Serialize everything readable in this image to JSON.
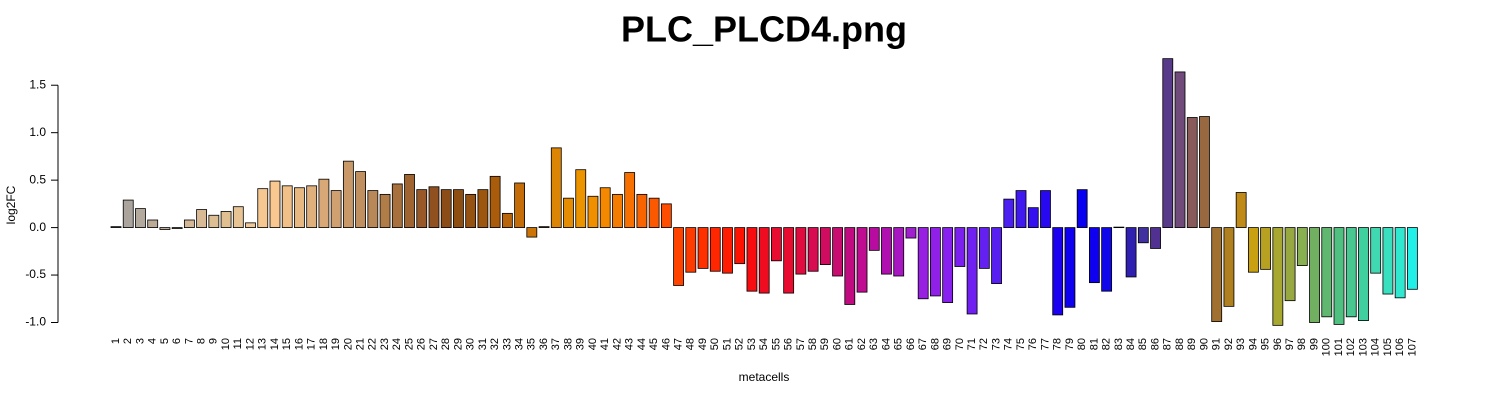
{
  "chart_data": {
    "type": "bar",
    "title": "PLC_PLCD4.png",
    "x_label": "metacells",
    "y_label": "log2FC",
    "categories": [
      "1",
      "2",
      "3",
      "4",
      "5",
      "6",
      "7",
      "8",
      "9",
      "10",
      "11",
      "12",
      "13",
      "14",
      "15",
      "16",
      "17",
      "18",
      "19",
      "20",
      "21",
      "22",
      "23",
      "24",
      "25",
      "26",
      "27",
      "28",
      "29",
      "30",
      "31",
      "32",
      "33",
      "34",
      "35",
      "36",
      "37",
      "38",
      "39",
      "40",
      "41",
      "42",
      "43",
      "44",
      "45",
      "46",
      "47",
      "48",
      "49",
      "50",
      "51",
      "52",
      "53",
      "54",
      "55",
      "56",
      "57",
      "58",
      "59",
      "60",
      "61",
      "62",
      "63",
      "64",
      "65",
      "66",
      "67",
      "68",
      "69",
      "70",
      "71",
      "72",
      "73",
      "74",
      "75",
      "76",
      "77",
      "78",
      "79",
      "80",
      "81",
      "82",
      "83",
      "84",
      "85",
      "86",
      "87",
      "88",
      "89",
      "90",
      "91",
      "92",
      "93",
      "94",
      "95",
      "96",
      "97",
      "98",
      "99",
      "100",
      "101",
      "102",
      "103",
      "104",
      "105",
      "106",
      "107"
    ],
    "values": [
      0.01,
      0.29,
      0.2,
      0.08,
      -0.02,
      -0.01,
      0.08,
      0.19,
      0.13,
      0.17,
      0.22,
      0.05,
      0.41,
      0.49,
      0.44,
      0.42,
      0.44,
      0.51,
      0.39,
      0.7,
      0.59,
      0.39,
      0.35,
      0.46,
      0.56,
      0.4,
      0.43,
      0.4,
      0.4,
      0.35,
      0.4,
      0.54,
      0.15,
      0.47,
      -0.1,
      0.01,
      0.84,
      0.31,
      0.61,
      0.33,
      0.42,
      0.35,
      0.58,
      0.35,
      0.31,
      0.25,
      -0.61,
      -0.47,
      -0.43,
      -0.46,
      -0.48,
      -0.38,
      -0.67,
      -0.69,
      -0.35,
      -0.69,
      -0.49,
      -0.46,
      -0.39,
      -0.51,
      -0.81,
      -0.68,
      -0.24,
      -0.49,
      -0.51,
      -0.11,
      -0.75,
      -0.72,
      -0.79,
      -0.41,
      -0.91,
      -0.43,
      -0.59,
      0.3,
      0.39,
      0.21,
      0.39,
      -0.92,
      -0.84,
      0.4,
      -0.58,
      -0.67,
      0.005,
      -0.52,
      -0.16,
      -0.22,
      1.78,
      1.64,
      1.16,
      1.17,
      -0.99,
      -0.83,
      0.37,
      -0.47,
      -0.44,
      -1.03,
      -0.77,
      -0.4,
      -1.0,
      -0.94,
      -1.02,
      -0.94,
      -0.98,
      -0.48,
      -0.7,
      -0.74,
      -0.65
    ],
    "colors": [
      "#a9a9a9",
      "#aaa49c",
      "#b3aa9d",
      "#bbaa96",
      "#c4b09a",
      "#cdb59c",
      "#d4b896",
      "#d8bb94",
      "#dcbe92",
      "#e0c090",
      "#e8c494",
      "#f0c898",
      "#f5c892",
      "#f8c890",
      "#f0c088",
      "#e8b882",
      "#e0b07c",
      "#d8a876",
      "#d0a070",
      "#c89868",
      "#c09060",
      "#b88858",
      "#b07c48",
      "#a8703c",
      "#a06430",
      "#985828",
      "#905020",
      "#8c4c18",
      "#8e4e12",
      "#955210",
      "#9c560e",
      "#a85c0c",
      "#b8640a",
      "#c46c08",
      "#cc7406",
      "#d47c04",
      "#dc8404",
      "#e48c02",
      "#ec9400",
      "#f09000",
      "#f48800",
      "#f47c00",
      "#f87000",
      "#fa6400",
      "#fc5800",
      "#fe4c00",
      "#ff4400",
      "#ff3c00",
      "#ff3000",
      "#ff2600",
      "#ff1c00",
      "#ff1200",
      "#f80c10",
      "#f00c20",
      "#e80c30",
      "#e80c30",
      "#e00c40",
      "#d80c50",
      "#d00c60",
      "#c80c70",
      "#c00c80",
      "#c00c90",
      "#b80ca0",
      "#b010b0",
      "#a818c0",
      "#a020d0",
      "#9820e0",
      "#9020e8",
      "#8820f0",
      "#7c20f0",
      "#7020f0",
      "#6420f0",
      "#5820f0",
      "#4c20f0",
      "#4018f0",
      "#3410f0",
      "#2808f0",
      "#1c00f0",
      "#1000f0",
      "#0800f0",
      "#1000f0",
      "#1008e8",
      "#2010d0",
      "#3020b0",
      "#4030a0",
      "#503090",
      "#583a8a",
      "#704a7a",
      "#885a5a",
      "#986840",
      "#a07030",
      "#b08020",
      "#c08a18",
      "#c8a010",
      "#b8a020",
      "#a8a830",
      "#98a840",
      "#88b050",
      "#70b060",
      "#60b870",
      "#50c080",
      "#48c890",
      "#40d0a0",
      "#40d8b0",
      "#38e0c0",
      "#30e8d0",
      "#20f0e8"
    ],
    "ylim": [
      -1.1,
      1.85
    ],
    "yticks": [
      {
        "value": -1.0,
        "label": "-1.0"
      },
      -0.5,
      {
        "value": 0.0,
        "label": "0.0"
      },
      0.5,
      {
        "value": 1.0,
        "label": "1.0"
      },
      1.5
    ]
  }
}
